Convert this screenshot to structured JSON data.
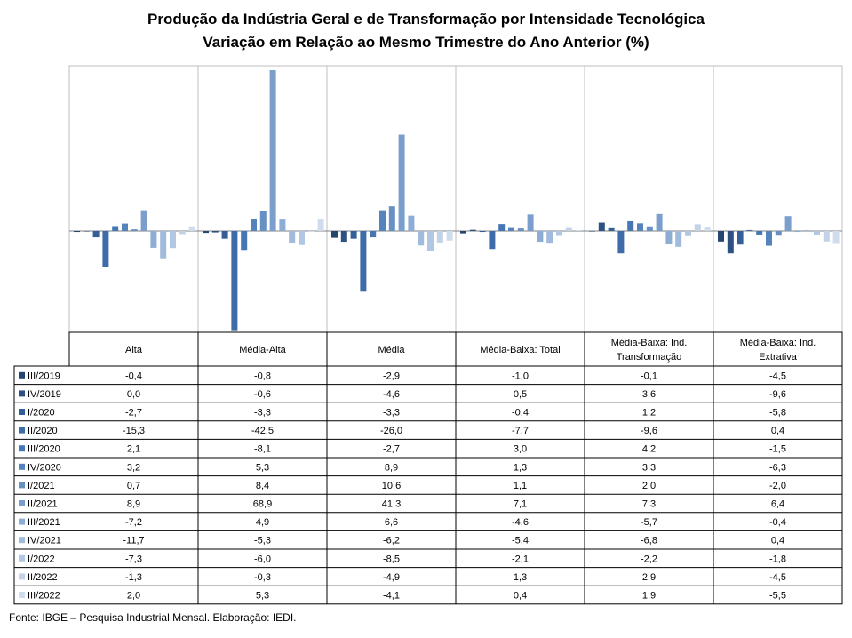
{
  "title": "Produção da Indústria Geral e de Transformação por Intensidade Tecnológica",
  "subtitle": "Variação em Relação ao Mesmo Trimestre do Ano Anterior (%)",
  "footer": "Fonte: IBGE – Pesquisa Industrial Mensal. Elaboração: IEDI.",
  "chart_data": {
    "type": "bar",
    "title": "Produção da Indústria Geral e de Transformação por Intensidade Tecnológica",
    "subtitle": "Variação em Relação ao Mesmo Trimestre do Ano Anterior (%)",
    "categories": [
      [
        "Alta"
      ],
      [
        "Média-Alta"
      ],
      [
        "Média"
      ],
      [
        "Média-Baixa: Total"
      ],
      [
        "Média-Baixa: Ind.",
        "Transformação"
      ],
      [
        "Média-Baixa: Ind.",
        "Extrativa"
      ]
    ],
    "grid": "vertical category dividers",
    "legend": "left, within data table",
    "series": [
      {
        "name": "III/2019",
        "color": "#26466f",
        "values": [
          "-0,4",
          "-0,8",
          "-2,9",
          "-1,0",
          "-0,1",
          "-4,5"
        ]
      },
      {
        "name": "IV/2019",
        "color": "#2c5182",
        "values": [
          "0,0",
          "-0,6",
          "-4,6",
          "0,5",
          "3,6",
          "-9,6"
        ]
      },
      {
        "name": "I/2020",
        "color": "#345f97",
        "values": [
          "-2,7",
          "-3,3",
          "-3,3",
          "-0,4",
          "1,2",
          "-5,8"
        ]
      },
      {
        "name": "II/2020",
        "color": "#3d6ca8",
        "values": [
          "-15,3",
          "-42,5",
          "-26,0",
          "-7,7",
          "-9,6",
          "0,4"
        ]
      },
      {
        "name": "III/2020",
        "color": "#4677b4",
        "values": [
          "2,1",
          "-8,1",
          "-2,7",
          "3,0",
          "4,2",
          "-1,5"
        ]
      },
      {
        "name": "IV/2020",
        "color": "#5583bb",
        "values": [
          "3,2",
          "5,3",
          "8,9",
          "1,3",
          "3,3",
          "-6,3"
        ]
      },
      {
        "name": "I/2021",
        "color": "#6890c3",
        "values": [
          "0,7",
          "8,4",
          "10,6",
          "1,1",
          "2,0",
          "-2,0"
        ]
      },
      {
        "name": "II/2021",
        "color": "#7b9fcc",
        "values": [
          "8,9",
          "68,9",
          "41,3",
          "7,1",
          "7,3",
          "6,4"
        ]
      },
      {
        "name": "III/2021",
        "color": "#8eadd4",
        "values": [
          "-7,2",
          "4,9",
          "6,6",
          "-4,6",
          "-5,7",
          "-0,4"
        ]
      },
      {
        "name": "IV/2021",
        "color": "#a1bbdc",
        "values": [
          "-11,7",
          "-5,3",
          "-6,2",
          "-5,4",
          "-6,8",
          "0,4"
        ]
      },
      {
        "name": "I/2022",
        "color": "#b2c7e3",
        "values": [
          "-7,3",
          "-6,0",
          "-8,5",
          "-2,1",
          "-2,2",
          "-1,8"
        ]
      },
      {
        "name": "II/2022",
        "color": "#c1d2e9",
        "values": [
          "-1,3",
          "-0,3",
          "-4,9",
          "1,3",
          "2,9",
          "-4,5"
        ]
      },
      {
        "name": "III/2022",
        "color": "#cfdcee",
        "values": [
          "2,0",
          "5,3",
          "-4,1",
          "0,4",
          "1,9",
          "-5,5"
        ]
      }
    ]
  }
}
